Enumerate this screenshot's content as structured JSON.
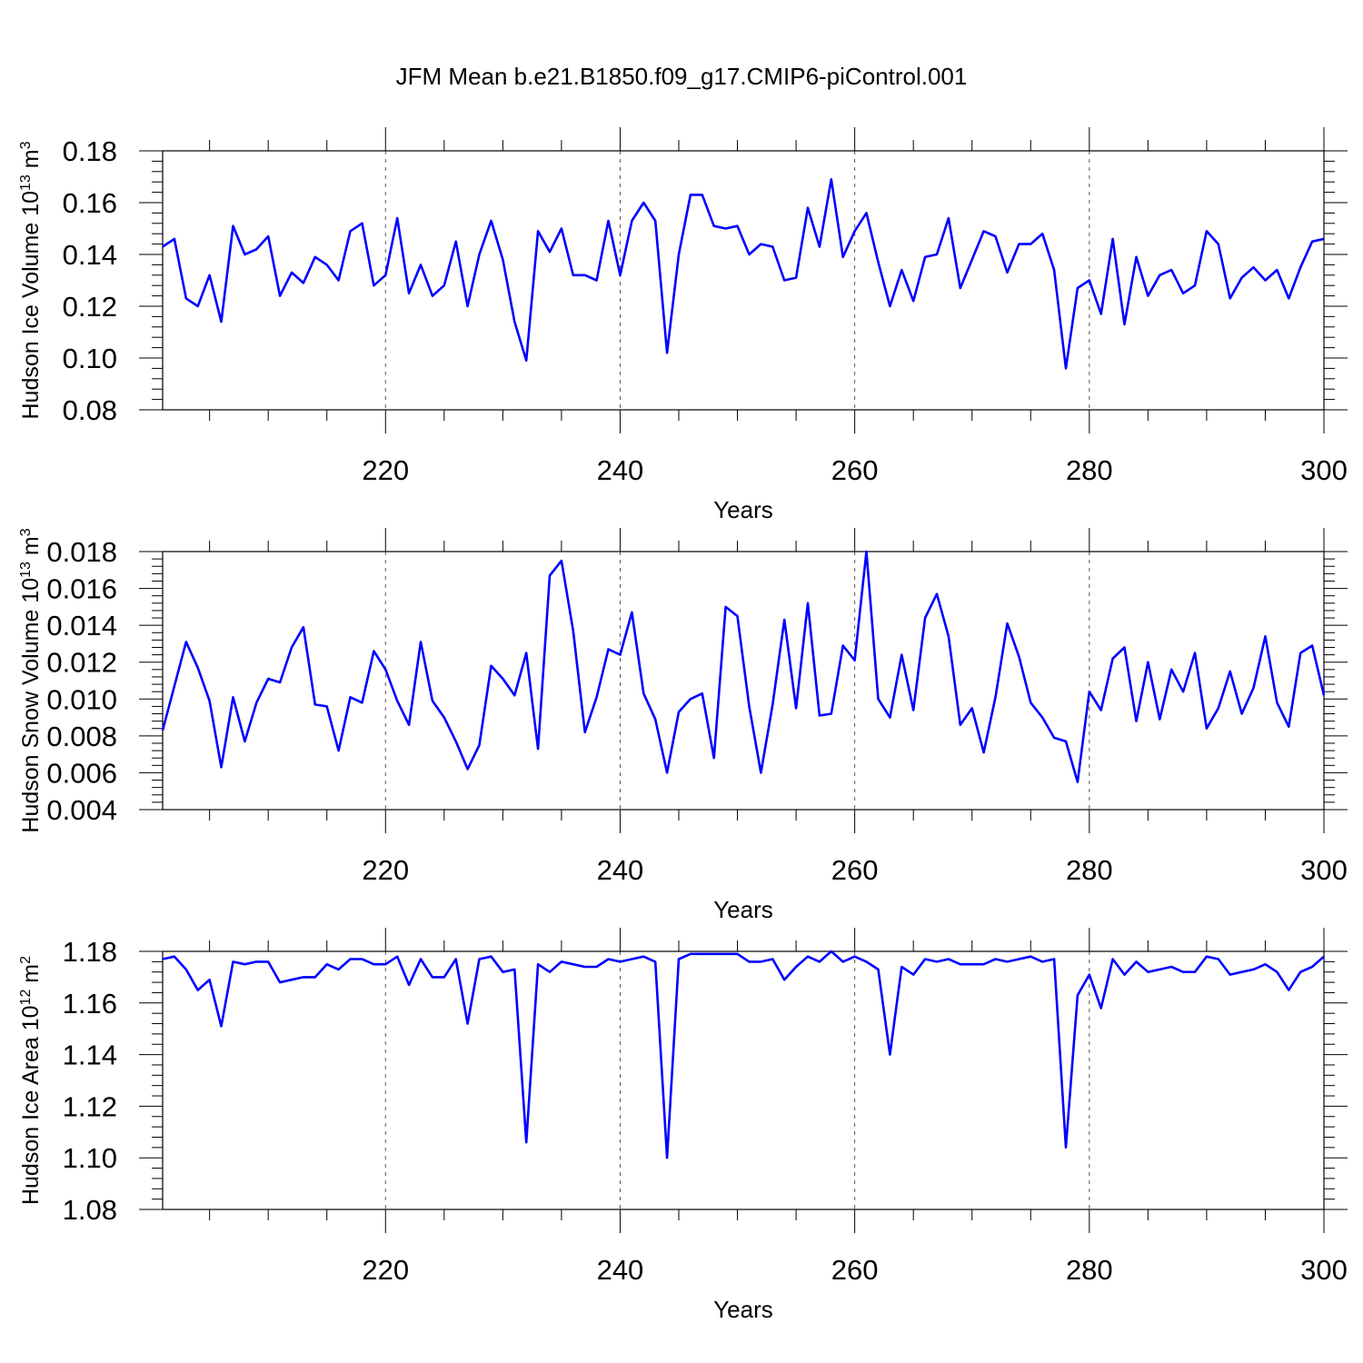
{
  "title": "JFM Mean b.e21.B1850.f09_g17.CMIP6-piControl.001",
  "line_color": "#0000ff",
  "chart_data": [
    {
      "type": "line",
      "ylabel_main": "Hudson Ice Volume 10",
      "ylabel_exp": "13",
      "ylabel_unit": "m",
      "ylabel_unit_exp": "3",
      "xlabel": "Years",
      "xlim": [
        201,
        300
      ],
      "ylim": [
        0.08,
        0.18
      ],
      "yticks": [
        0.08,
        0.1,
        0.12,
        0.14,
        0.16,
        0.18
      ],
      "ytick_labels": [
        "0.08",
        "0.10",
        "0.12",
        "0.14",
        "0.16",
        "0.18"
      ],
      "xticks": [
        220,
        240,
        260,
        280,
        300
      ],
      "xtick_labels": [
        "220",
        "240",
        "260",
        "280",
        "300"
      ],
      "grid_x": [
        220,
        240,
        260,
        280
      ],
      "x_start": 201,
      "values": [
        0.143,
        0.146,
        0.123,
        0.12,
        0.132,
        0.114,
        0.151,
        0.14,
        0.142,
        0.147,
        0.124,
        0.133,
        0.129,
        0.139,
        0.136,
        0.13,
        0.149,
        0.152,
        0.128,
        0.132,
        0.154,
        0.125,
        0.136,
        0.124,
        0.128,
        0.145,
        0.12,
        0.14,
        0.153,
        0.138,
        0.114,
        0.099,
        0.149,
        0.141,
        0.15,
        0.132,
        0.132,
        0.13,
        0.153,
        0.132,
        0.153,
        0.16,
        0.153,
        0.102,
        0.14,
        0.163,
        0.163,
        0.151,
        0.15,
        0.151,
        0.14,
        0.144,
        0.143,
        0.13,
        0.131,
        0.158,
        0.143,
        0.169,
        0.139,
        0.149,
        0.156,
        0.137,
        0.12,
        0.134,
        0.122,
        0.139,
        0.14,
        0.154,
        0.127,
        0.138,
        0.149,
        0.147,
        0.133,
        0.144,
        0.144,
        0.148,
        0.134,
        0.096,
        0.127,
        0.13,
        0.117,
        0.146,
        0.113,
        0.139,
        0.124,
        0.132,
        0.134,
        0.125,
        0.128,
        0.149,
        0.144,
        0.123,
        0.131,
        0.135,
        0.13,
        0.134,
        0.123,
        0.135,
        0.145,
        0.146
      ]
    },
    {
      "type": "line",
      "ylabel_main": "Hudson Snow Volume 10",
      "ylabel_exp": "13",
      "ylabel_unit": "m",
      "ylabel_unit_exp": "3",
      "xlabel": "Years",
      "xlim": [
        201,
        300
      ],
      "ylim": [
        0.004,
        0.018
      ],
      "yticks": [
        0.004,
        0.006,
        0.008,
        0.01,
        0.012,
        0.014,
        0.016,
        0.018
      ],
      "ytick_labels": [
        "0.004",
        "0.006",
        "0.008",
        "0.010",
        "0.012",
        "0.014",
        "0.016",
        "0.018"
      ],
      "xticks": [
        220,
        240,
        260,
        280,
        300
      ],
      "xtick_labels": [
        "220",
        "240",
        "260",
        "280",
        "300"
      ],
      "grid_x": [
        220,
        240,
        260,
        280
      ],
      "x_start": 201,
      "values": [
        0.0083,
        0.0107,
        0.0131,
        0.0117,
        0.0099,
        0.0063,
        0.0101,
        0.0077,
        0.0098,
        0.0111,
        0.0109,
        0.0128,
        0.0139,
        0.0097,
        0.0096,
        0.0072,
        0.0101,
        0.0098,
        0.0126,
        0.0116,
        0.0099,
        0.0086,
        0.0131,
        0.0099,
        0.009,
        0.0077,
        0.0062,
        0.0075,
        0.0118,
        0.0111,
        0.0102,
        0.0125,
        0.0073,
        0.0167,
        0.0175,
        0.0137,
        0.0082,
        0.0101,
        0.0127,
        0.0124,
        0.0147,
        0.0103,
        0.0089,
        0.006,
        0.0093,
        0.01,
        0.0103,
        0.0068,
        0.015,
        0.0145,
        0.0096,
        0.006,
        0.0097,
        0.0143,
        0.0095,
        0.0152,
        0.0091,
        0.0092,
        0.0129,
        0.0121,
        0.018,
        0.01,
        0.009,
        0.0124,
        0.0094,
        0.0144,
        0.0157,
        0.0134,
        0.0086,
        0.0095,
        0.0071,
        0.0101,
        0.0141,
        0.0123,
        0.0098,
        0.009,
        0.0079,
        0.0077,
        0.0055,
        0.0104,
        0.0094,
        0.0122,
        0.0128,
        0.0088,
        0.012,
        0.0089,
        0.0116,
        0.0104,
        0.0125,
        0.0084,
        0.0095,
        0.0115,
        0.0092,
        0.0106,
        0.0134,
        0.0098,
        0.0085,
        0.0125,
        0.0129,
        0.0102
      ]
    },
    {
      "type": "line",
      "ylabel_main": "Hudson Ice Area 10",
      "ylabel_exp": "12",
      "ylabel_unit": "m",
      "ylabel_unit_exp": "2",
      "xlabel": "Years",
      "xlim": [
        201,
        300
      ],
      "ylim": [
        1.08,
        1.18
      ],
      "yticks": [
        1.08,
        1.1,
        1.12,
        1.14,
        1.16,
        1.18
      ],
      "ytick_labels": [
        "1.08",
        "1.10",
        "1.12",
        "1.14",
        "1.16",
        "1.18"
      ],
      "xticks": [
        220,
        240,
        260,
        280,
        300
      ],
      "xtick_labels": [
        "220",
        "240",
        "260",
        "280",
        "300"
      ],
      "grid_x": [
        220,
        240,
        260,
        280
      ],
      "x_start": 201,
      "values": [
        1.177,
        1.178,
        1.173,
        1.165,
        1.169,
        1.151,
        1.176,
        1.175,
        1.176,
        1.176,
        1.168,
        1.169,
        1.17,
        1.17,
        1.175,
        1.173,
        1.177,
        1.177,
        1.175,
        1.175,
        1.178,
        1.167,
        1.177,
        1.17,
        1.17,
        1.177,
        1.152,
        1.177,
        1.178,
        1.172,
        1.173,
        1.106,
        1.175,
        1.172,
        1.176,
        1.175,
        1.174,
        1.174,
        1.177,
        1.176,
        1.177,
        1.178,
        1.176,
        1.1,
        1.177,
        1.179,
        1.179,
        1.179,
        1.179,
        1.179,
        1.176,
        1.176,
        1.177,
        1.169,
        1.174,
        1.178,
        1.176,
        1.18,
        1.176,
        1.178,
        1.176,
        1.173,
        1.14,
        1.174,
        1.171,
        1.177,
        1.176,
        1.177,
        1.175,
        1.175,
        1.175,
        1.177,
        1.176,
        1.177,
        1.178,
        1.176,
        1.177,
        1.104,
        1.163,
        1.171,
        1.158,
        1.177,
        1.171,
        1.176,
        1.172,
        1.173,
        1.174,
        1.172,
        1.172,
        1.178,
        1.177,
        1.171,
        1.172,
        1.173,
        1.175,
        1.172,
        1.165,
        1.172,
        1.174,
        1.178
      ]
    }
  ]
}
